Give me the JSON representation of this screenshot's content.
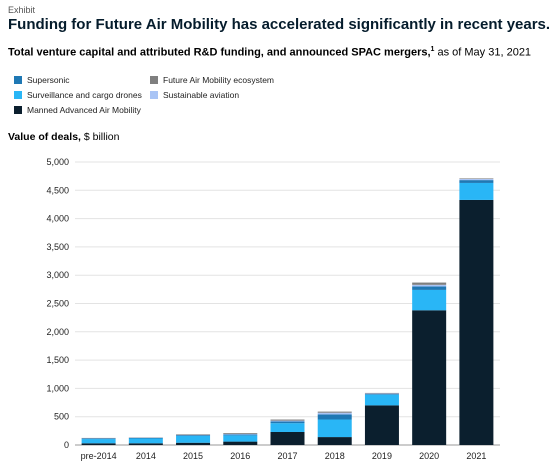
{
  "header": {
    "exhibit": "Exhibit",
    "title": "Funding for Future Air Mobility has accelerated significantly in recent years.",
    "subtitle_bold": "Total venture capital and attributed R&D funding, and announced SPAC mergers,",
    "subtitle_sup": "1",
    "subtitle_rest": " as of May 31, 2021"
  },
  "value_label": {
    "bold": "Value of deals,",
    "rest": " $ billion"
  },
  "legend": [
    {
      "label": "Supersonic",
      "color": "#1f78b4"
    },
    {
      "label": "Future Air Mobility ecosystem",
      "color": "#7f7f7f"
    },
    {
      "label": "Surveillance and cargo drones",
      "color": "#29b6f6"
    },
    {
      "label": "Sustainable aviation",
      "color": "#a9c4f5"
    },
    {
      "label": "Manned Advanced Air Mobility",
      "color": "#0b1f2e"
    }
  ],
  "chart_data": {
    "type": "bar",
    "stacked": true,
    "categories": [
      "pre-2014",
      "2014",
      "2015",
      "2016",
      "2017",
      "2018",
      "2019",
      "2020",
      "2021"
    ],
    "ylim": [
      0,
      5000
    ],
    "yticks": [
      "0",
      "500",
      "1,000",
      "1,500",
      "2,000",
      "2,500",
      "3,000",
      "3,500",
      "4,000",
      "4,500",
      "5,000"
    ],
    "ytick_values": [
      0,
      500,
      1000,
      1500,
      2000,
      2500,
      3000,
      3500,
      4000,
      4500,
      5000
    ],
    "grid": true,
    "series": [
      {
        "name": "Manned Advanced Air Mobility",
        "color": "#0b1f2e",
        "values": [
          30,
          30,
          40,
          60,
          230,
          140,
          700,
          2380,
          4330
        ]
      },
      {
        "name": "Surveillance and cargo drones",
        "color": "#29b6f6",
        "values": [
          75,
          85,
          120,
          110,
          155,
          310,
          190,
          360,
          300
        ]
      },
      {
        "name": "Supersonic",
        "color": "#1f78b4",
        "values": [
          10,
          10,
          15,
          15,
          30,
          90,
          10,
          60,
          50
        ]
      },
      {
        "name": "Sustainable aviation",
        "color": "#a9c4f5",
        "values": [
          5,
          5,
          5,
          10,
          15,
          30,
          10,
          30,
          20
        ]
      },
      {
        "name": "Future Air Mobility ecosystem",
        "color": "#7f7f7f",
        "values": [
          5,
          5,
          10,
          15,
          20,
          20,
          10,
          40,
          10
        ]
      }
    ]
  }
}
